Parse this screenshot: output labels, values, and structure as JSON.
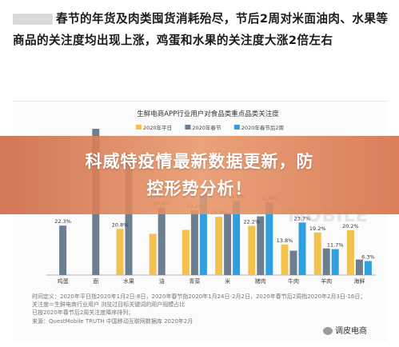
{
  "header": {
    "paragraph": "春节的年货及肉类囤货消耗殆尽，节后2周对米面油肉、水果等商品的关注度均出现上涨，鸡蛋和水果的关注度大涨2倍左右"
  },
  "banner": {
    "line1": "科威特疫情最新数据更新，防",
    "line2": "控形势分析！"
  },
  "footnotes": [
    "时间定义：2020年平日指2020年1月2日-8日，2020年春节指2020年1月24日-2月2日，2020年春节后2周指2020年2月3日-16日；",
    "关注度＝生鲜电商行业用户 浏览过目标关键词的用户规模占比",
    "已按2020年春节后2周关注度降序排列；"
  ],
  "source": "来源：QuestMobile TRUTH 中国移动互联网数据库 2020年2月",
  "watermark": "MOBILE",
  "wechat_account": "调皮电商",
  "colors": {
    "series_weekday": "#f2c14e",
    "series_spring": "#6e7e91",
    "series_after": "#2f9fe0"
  },
  "chart_data": {
    "type": "bar",
    "title": "生鲜电商APP行业用户对食品类重点品类关注度",
    "categories": [
      "鸡蛋",
      "面",
      "水果",
      "油",
      "青菜",
      "米",
      "猪肉",
      "牛肉",
      "羊肉",
      "海鲜"
    ],
    "series": [
      {
        "name": "2020年平日",
        "values": [
          null,
          null,
          20.8,
          18.6,
          20.4,
          26.3,
          22.2,
          13.8,
          19.2,
          20.2
        ]
      },
      {
        "name": "2020年春节",
        "values": [
          22.3,
          66.0,
          55.0,
          30.4,
          29.2,
          28.0,
          26.5,
          11.0,
          12.0,
          7.0
        ]
      },
      {
        "name": "2020年春节后2周",
        "values": [
          null,
          null,
          null,
          null,
          37.1,
          33.5,
          32.8,
          23.7,
          11.7,
          6.3
        ]
      }
    ],
    "data_labels": [
      {
        "category": "鸡蛋",
        "series": "2020年春节",
        "text": "22.3%"
      },
      {
        "category": "水果",
        "series": "2020年平日",
        "text": "20.8%"
      },
      {
        "category": "油",
        "series": "2020年春节",
        "text": "30.4%"
      },
      {
        "category": "青菜",
        "series": "2020年春节",
        "text": "29.2%"
      },
      {
        "category": "青菜",
        "series": "2020年春节后2周",
        "text": "37.1%"
      },
      {
        "category": "米",
        "series": "2020年平日",
        "text": "26.3%"
      },
      {
        "category": "米",
        "series": "2020年春节后2周",
        "text": "33.5%"
      },
      {
        "category": "猪肉",
        "series": "2020年平日",
        "text": "22.2%"
      },
      {
        "category": "猪肉",
        "series": "2020年春节后2周",
        "text": "32.8%"
      },
      {
        "category": "牛肉",
        "series": "2020年平日",
        "text": "13.8%"
      },
      {
        "category": "牛肉",
        "series": "2020年春节后2周",
        "text": "23.7%"
      },
      {
        "category": "羊肉",
        "series": "2020年平日",
        "text": "19.2%"
      },
      {
        "category": "羊肉",
        "series": "2020年春节后2周",
        "text": "11.7%"
      },
      {
        "category": "海鲜",
        "series": "2020年平日",
        "text": "20.2%"
      },
      {
        "category": "海鲜",
        "series": "2020年春节后2周",
        "text": "6.3%"
      }
    ],
    "ylim": [
      0,
      70
    ],
    "grid": false,
    "legend": "top"
  }
}
